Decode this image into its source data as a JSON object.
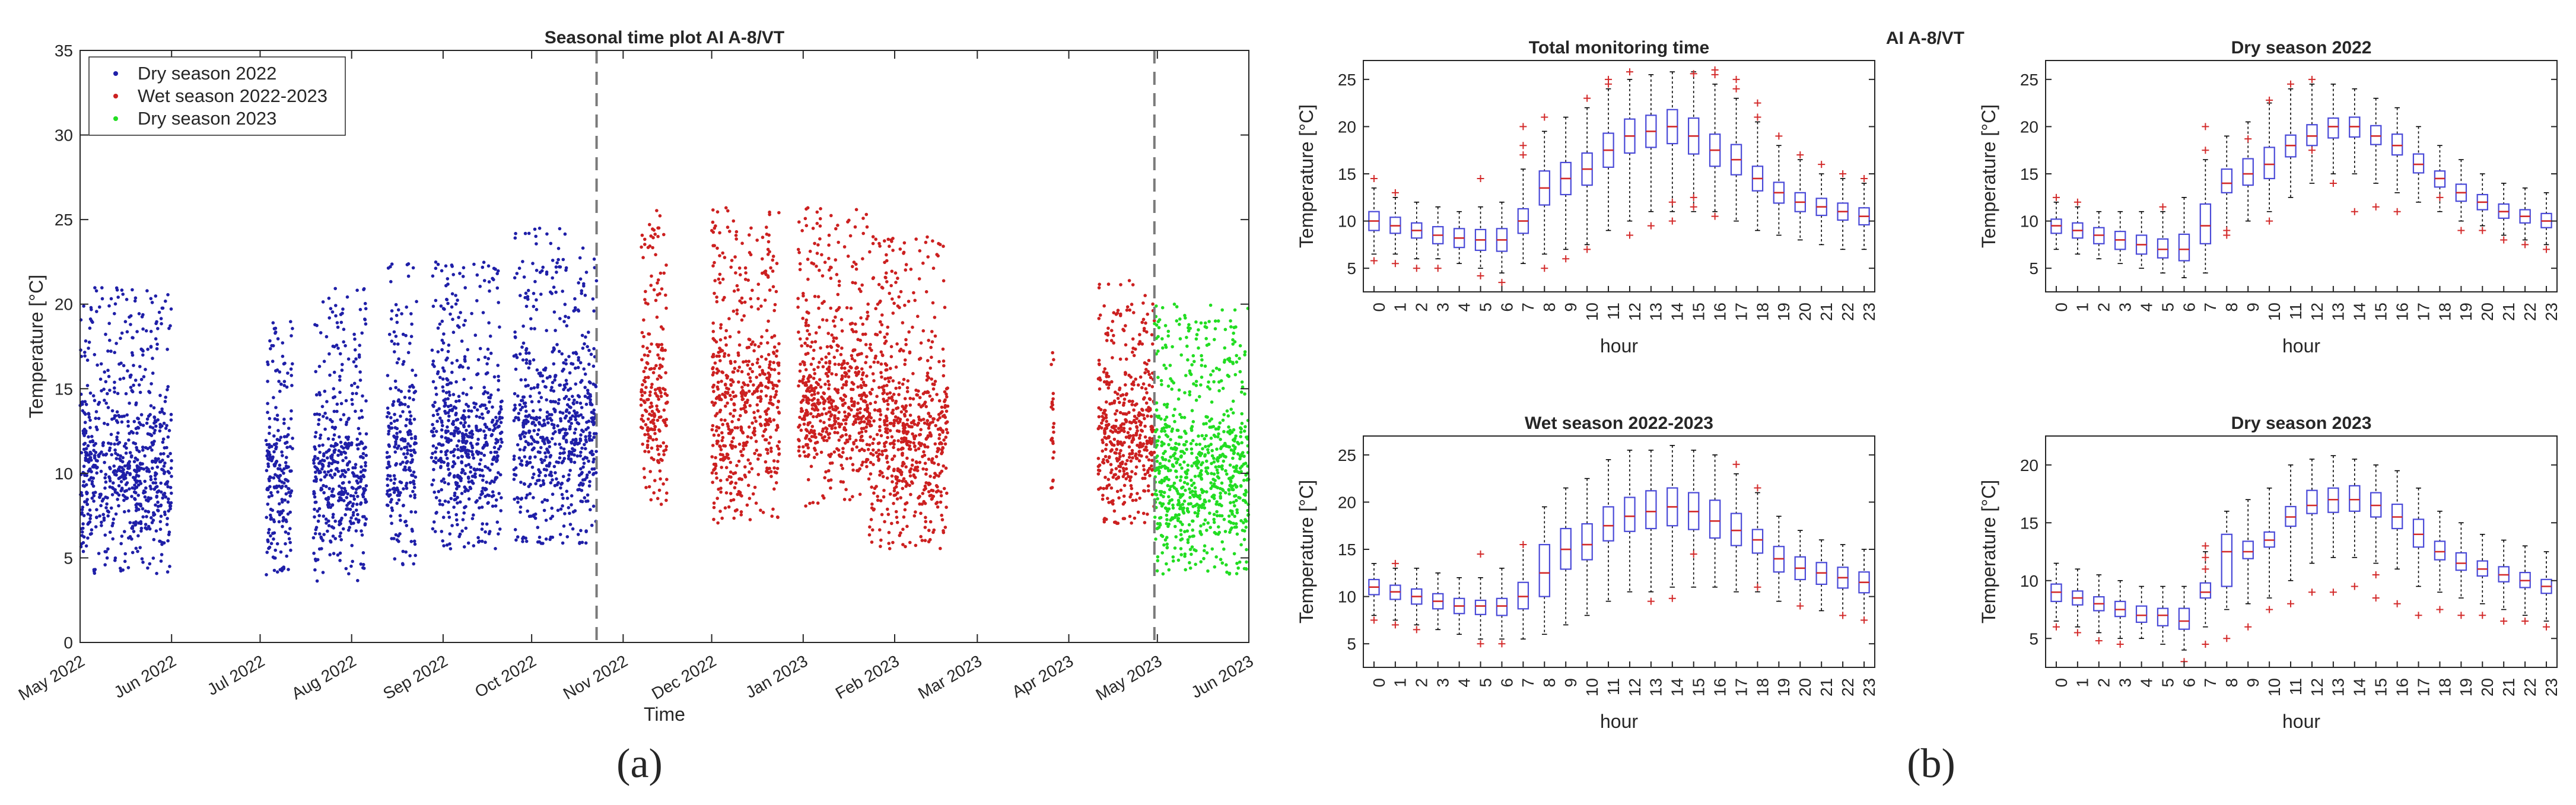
{
  "figure": {
    "suptitle_b": "AI A-8/VT",
    "panel_labels": {
      "a": "(a)",
      "b": "(b)"
    }
  },
  "chart_data": [
    {
      "type": "scatter",
      "id": "a",
      "title": "Seasonal time plot AI A-8/VT",
      "xlabel": "Time",
      "ylabel": "Temperature [°C]",
      "ylim": [
        0,
        35
      ],
      "yticks": [
        0,
        5,
        10,
        15,
        20,
        25,
        30,
        35
      ],
      "xlim_days": [
        0,
        396
      ],
      "xticks": [
        {
          "label": "May 2022",
          "day": 0
        },
        {
          "label": "Jun 2022",
          "day": 31
        },
        {
          "label": "Jul 2022",
          "day": 61
        },
        {
          "label": "Aug 2022",
          "day": 92
        },
        {
          "label": "Sep 2022",
          "day": 123
        },
        {
          "label": "Oct 2022",
          "day": 153
        },
        {
          "label": "Nov 2022",
          "day": 184
        },
        {
          "label": "Dec 2022",
          "day": 214
        },
        {
          "label": "Jan 2023",
          "day": 245
        },
        {
          "label": "Feb 2023",
          "day": 276
        },
        {
          "label": "Mar 2023",
          "day": 304
        },
        {
          "label": "Apr 2023",
          "day": 335
        },
        {
          "label": "May 2023",
          "day": 365
        },
        {
          "label": "Jun 2023",
          "day": 396
        }
      ],
      "season_dividers_days": [
        175,
        364
      ],
      "legend": {
        "placement": "top-left",
        "entries": [
          "Dry season 2022",
          "Wet season 2022-2023",
          "Dry season 2023"
        ]
      },
      "series": [
        {
          "name": "Dry season 2022",
          "color": "#1f1fa8",
          "clusters": [
            {
              "start": 0,
              "end": 31,
              "min": 4,
              "max": 21
            },
            {
              "start": 63,
              "end": 72,
              "min": 4,
              "max": 19
            },
            {
              "start": 79,
              "end": 97,
              "min": 3.5,
              "max": 21
            },
            {
              "start": 104,
              "end": 114,
              "min": 4.5,
              "max": 22.5
            },
            {
              "start": 119,
              "end": 143,
              "min": 5.5,
              "max": 22.5
            },
            {
              "start": 147,
              "end": 175,
              "min": 5.8,
              "max": 24.6
            }
          ]
        },
        {
          "name": "Wet season 2022-2023",
          "color": "#cc2020",
          "clusters": [
            {
              "start": 190,
              "end": 199,
              "min": 8,
              "max": 25.6
            },
            {
              "start": 214,
              "end": 237,
              "min": 7,
              "max": 25.7
            },
            {
              "start": 243,
              "end": 267,
              "min": 8,
              "max": 25.8
            },
            {
              "start": 267,
              "end": 294,
              "min": 5.5,
              "max": 24
            },
            {
              "start": 329,
              "end": 330,
              "min": 9,
              "max": 18.5
            },
            {
              "start": 345,
              "end": 364,
              "min": 7,
              "max": 21.5
            }
          ]
        },
        {
          "name": "Dry season 2023",
          "color": "#22dd22",
          "clusters": [
            {
              "start": 364,
              "end": 396,
              "min": 4,
              "max": 20
            }
          ]
        }
      ]
    },
    {
      "type": "box",
      "id": "b1",
      "title": "Total monitoring time",
      "xlabel": "hour",
      "ylabel": "Temperature [°C]",
      "ylim": [
        2.5,
        27
      ],
      "yticks": [
        5,
        10,
        15,
        20,
        25
      ],
      "categories": [
        "0",
        "1",
        "2",
        "3",
        "4",
        "5",
        "6",
        "7",
        "8",
        "9",
        "10",
        "11",
        "12",
        "13",
        "14",
        "15",
        "16",
        "17",
        "18",
        "19",
        "20",
        "21",
        "22",
        "23"
      ],
      "medians": [
        10,
        9.5,
        9,
        8.5,
        8.2,
        8,
        8,
        10,
        13.5,
        14.5,
        15.5,
        17.5,
        19,
        19.5,
        20,
        19,
        17.5,
        16.5,
        14.5,
        13,
        12,
        11.5,
        11,
        10.5
      ],
      "q1": [
        9,
        8.7,
        8.2,
        7.6,
        7.2,
        6.9,
        6.8,
        8.7,
        11.7,
        12.8,
        13.8,
        15.7,
        17.2,
        17.8,
        18.2,
        17.1,
        15.8,
        14.9,
        13.2,
        11.9,
        11,
        10.6,
        10.1,
        9.6
      ],
      "q3": [
        11,
        10.4,
        9.8,
        9.4,
        9.2,
        9.1,
        9.2,
        11.3,
        15.3,
        16.2,
        17.2,
        19.3,
        20.8,
        21.2,
        21.8,
        20.9,
        19.2,
        18.1,
        15.8,
        14.1,
        13,
        12.4,
        11.9,
        11.4
      ],
      "whisker_low": [
        6.5,
        6.5,
        6,
        6,
        5.5,
        5,
        4.5,
        5.5,
        6.5,
        7,
        7.5,
        9,
        10,
        11,
        11,
        11,
        11,
        10,
        9,
        8.5,
        8,
        7.5,
        7,
        7
      ],
      "whisker_high": [
        13.5,
        12.5,
        12,
        11.5,
        11,
        11.5,
        12,
        15.5,
        19.5,
        21,
        22,
        24,
        25,
        25.5,
        25.8,
        25.8,
        24.5,
        23,
        20.5,
        18,
        16.5,
        15,
        14.5,
        14
      ],
      "outliers": [
        [
          0,
          5.8
        ],
        [
          0,
          14.5
        ],
        [
          1,
          5.5
        ],
        [
          1,
          13
        ],
        [
          2,
          5
        ],
        [
          3,
          5
        ],
        [
          5,
          14.5
        ],
        [
          5,
          4.2
        ],
        [
          6,
          3.5
        ],
        [
          7,
          17
        ],
        [
          7,
          18
        ],
        [
          7,
          20
        ],
        [
          8,
          21
        ],
        [
          8,
          5
        ],
        [
          9,
          6
        ],
        [
          10,
          23
        ],
        [
          10,
          7
        ],
        [
          11,
          25
        ],
        [
          11,
          24.5
        ],
        [
          12,
          25.8
        ],
        [
          12,
          8.5
        ],
        [
          13,
          9.5
        ],
        [
          14,
          10
        ],
        [
          14,
          12
        ],
        [
          15,
          11.5
        ],
        [
          15,
          12.5
        ],
        [
          15,
          25.6
        ],
        [
          16,
          10.5
        ],
        [
          16,
          25.5
        ],
        [
          16,
          26
        ],
        [
          17,
          25
        ],
        [
          17,
          24
        ],
        [
          18,
          21
        ],
        [
          18,
          22.5
        ],
        [
          19,
          19
        ],
        [
          20,
          17
        ],
        [
          21,
          16
        ],
        [
          22,
          15
        ],
        [
          23,
          14.5
        ]
      ]
    },
    {
      "type": "box",
      "id": "b2",
      "title": "Dry season 2022",
      "xlabel": "hour",
      "ylabel": "Temperature [°C]",
      "ylim": [
        2.5,
        27
      ],
      "yticks": [
        5,
        10,
        15,
        20,
        25
      ],
      "categories": [
        "0",
        "1",
        "2",
        "3",
        "4",
        "5",
        "6",
        "7",
        "8",
        "9",
        "10",
        "11",
        "12",
        "13",
        "14",
        "15",
        "16",
        "17",
        "18",
        "19",
        "20",
        "21",
        "22",
        "23"
      ],
      "medians": [
        9.5,
        9,
        8.5,
        8,
        7.5,
        7,
        7,
        9.5,
        14,
        15,
        16,
        18,
        19,
        20,
        20,
        19,
        18,
        16,
        14.5,
        13,
        12,
        11,
        10.5,
        10
      ],
      "q1": [
        8.7,
        8.2,
        7.6,
        7,
        6.5,
        6.1,
        5.8,
        7.6,
        13,
        13.8,
        14.5,
        16.8,
        18,
        18.8,
        18.9,
        18.1,
        17,
        15.1,
        13.6,
        12.1,
        11.2,
        10.3,
        9.8,
        9.3
      ],
      "q3": [
        10.2,
        9.8,
        9.3,
        8.9,
        8.5,
        8.1,
        8.6,
        11.8,
        15.5,
        16.6,
        17.8,
        19.1,
        20.2,
        20.9,
        21,
        20.1,
        19.2,
        17.1,
        15.3,
        13.9,
        12.8,
        11.8,
        11.2,
        10.8
      ],
      "whisker_low": [
        7,
        6.5,
        6,
        5.5,
        5,
        4.5,
        4,
        4.5,
        9,
        10,
        11,
        12.5,
        14,
        15,
        15,
        14,
        13,
        12,
        11,
        10,
        9.5,
        8.5,
        8,
        7.5
      ],
      "whisker_high": [
        12,
        11.5,
        11,
        11,
        11,
        11,
        12.5,
        16.5,
        19,
        20.5,
        22.5,
        24,
        24.5,
        24.5,
        24,
        23,
        22,
        20,
        18,
        16.5,
        15,
        14,
        13.5,
        13
      ],
      "outliers": [
        [
          0,
          12.5
        ],
        [
          1,
          12
        ],
        [
          5,
          11.5
        ],
        [
          7,
          17.5
        ],
        [
          7,
          20
        ],
        [
          8,
          9
        ],
        [
          8,
          8.5
        ],
        [
          9,
          18.7
        ],
        [
          10,
          10
        ],
        [
          10,
          22.8
        ],
        [
          11,
          24.5
        ],
        [
          12,
          25
        ],
        [
          12,
          17.5
        ],
        [
          13,
          14
        ],
        [
          14,
          11
        ],
        [
          15,
          11.5
        ],
        [
          16,
          11
        ],
        [
          18,
          12.5
        ],
        [
          19,
          9
        ],
        [
          20,
          9
        ],
        [
          21,
          8
        ],
        [
          22,
          7.5
        ],
        [
          23,
          7
        ]
      ]
    },
    {
      "type": "box",
      "id": "b3",
      "title": "Wet season 2022-2023",
      "xlabel": "hour",
      "ylabel": "Temperature [°C]",
      "ylim": [
        2.5,
        27
      ],
      "yticks": [
        5,
        10,
        15,
        20,
        25
      ],
      "categories": [
        "0",
        "1",
        "2",
        "3",
        "4",
        "5",
        "6",
        "7",
        "8",
        "9",
        "10",
        "11",
        "12",
        "13",
        "14",
        "15",
        "16",
        "17",
        "18",
        "19",
        "20",
        "21",
        "22",
        "23"
      ],
      "medians": [
        11,
        10.5,
        10,
        9.5,
        9,
        9,
        9,
        10,
        12.5,
        15,
        15.5,
        17.5,
        18.5,
        19,
        19.5,
        19,
        18,
        17,
        16,
        14,
        13,
        12.5,
        12,
        11.5
      ],
      "q1": [
        10.2,
        9.7,
        9.2,
        8.7,
        8.2,
        8.1,
        8,
        8.7,
        10,
        12.9,
        13.9,
        15.9,
        16.9,
        17.2,
        17.5,
        17.1,
        16.2,
        15.4,
        14.6,
        12.6,
        11.8,
        11.3,
        10.9,
        10.4
      ],
      "q3": [
        11.8,
        11.2,
        10.8,
        10.3,
        9.8,
        9.6,
        9.8,
        11.5,
        15.5,
        17.2,
        17.7,
        19.5,
        20.5,
        21.2,
        21.5,
        21,
        20.2,
        18.8,
        17.1,
        15.3,
        14.2,
        13.6,
        13.1,
        12.6
      ],
      "whisker_low": [
        8,
        7.5,
        7,
        6.5,
        6,
        5.5,
        5.5,
        5.5,
        6,
        7,
        8,
        9.5,
        10.5,
        10.5,
        11,
        11,
        11,
        10.5,
        10.5,
        9.5,
        9,
        8.5,
        8,
        7.5
      ],
      "whisker_high": [
        13.5,
        13,
        13,
        12.5,
        12,
        12,
        13,
        15.5,
        19.5,
        21.5,
        22.5,
        24.5,
        25.5,
        25.5,
        26,
        25.5,
        25,
        23,
        21,
        18.5,
        17,
        16,
        15.5,
        15
      ],
      "outliers": [
        [
          0,
          7.5
        ],
        [
          1,
          7
        ],
        [
          1,
          13.5
        ],
        [
          2,
          6.5
        ],
        [
          5,
          14.5
        ],
        [
          5,
          5
        ],
        [
          6,
          5
        ],
        [
          7,
          15.5
        ],
        [
          13,
          9.5
        ],
        [
          14,
          9.8
        ],
        [
          15,
          14.5
        ],
        [
          17,
          24
        ],
        [
          18,
          21.5
        ],
        [
          18,
          11
        ],
        [
          20,
          9
        ],
        [
          22,
          8
        ],
        [
          23,
          7.5
        ]
      ]
    },
    {
      "type": "box",
      "id": "b4",
      "title": "Dry season 2023",
      "xlabel": "hour",
      "ylabel": "Temperature [°C]",
      "ylim": [
        2.5,
        22.5
      ],
      "yticks": [
        5,
        10,
        15,
        20
      ],
      "categories": [
        "0",
        "1",
        "2",
        "3",
        "4",
        "5",
        "6",
        "7",
        "8",
        "9",
        "10",
        "11",
        "12",
        "13",
        "14",
        "15",
        "16",
        "17",
        "18",
        "19",
        "20",
        "21",
        "22",
        "23"
      ],
      "medians": [
        9,
        8.5,
        8,
        7.5,
        7,
        7,
        6.5,
        9,
        12.5,
        12.5,
        13.5,
        15.5,
        16.5,
        17,
        17,
        16.5,
        15.5,
        14,
        12.5,
        11.5,
        11,
        10.5,
        10,
        9.5
      ],
      "q1": [
        8.2,
        7.9,
        7.4,
        6.9,
        6.4,
        6.1,
        5.8,
        8.5,
        9.5,
        11.9,
        12.9,
        14.7,
        15.8,
        15.9,
        16,
        15.5,
        14.5,
        12.9,
        11.8,
        10.9,
        10.4,
        9.9,
        9.4,
        8.9
      ],
      "q3": [
        9.7,
        9.1,
        8.6,
        8.2,
        7.8,
        7.6,
        7.6,
        9.8,
        14,
        13.4,
        14.2,
        16.4,
        17.8,
        18,
        18.2,
        17.6,
        16.6,
        15.3,
        13.4,
        12.4,
        11.7,
        11.2,
        10.7,
        10.1
      ],
      "whisker_low": [
        6.5,
        6,
        5.5,
        5,
        5,
        4.5,
        4,
        6,
        7.5,
        8,
        8.5,
        10,
        11.5,
        12,
        12,
        11.5,
        11,
        9.5,
        9,
        8.5,
        8,
        7.5,
        7,
        6.5
      ],
      "whisker_high": [
        11.5,
        11,
        10.5,
        10,
        9.5,
        9.5,
        9.5,
        12.5,
        16,
        17,
        18,
        20,
        20.5,
        20.8,
        20.5,
        20,
        19.5,
        18,
        16,
        15,
        14,
        13.5,
        13,
        12.5
      ],
      "outliers": [
        [
          0,
          6
        ],
        [
          1,
          5.5
        ],
        [
          2,
          4.8
        ],
        [
          3,
          4.5
        ],
        [
          6,
          3
        ],
        [
          7,
          11
        ],
        [
          7,
          12
        ],
        [
          7,
          13
        ],
        [
          7,
          4.5
        ],
        [
          8,
          5
        ],
        [
          9,
          6
        ],
        [
          10,
          7.5
        ],
        [
          11,
          8
        ],
        [
          12,
          9
        ],
        [
          13,
          9
        ],
        [
          14,
          9.5
        ],
        [
          15,
          10.5
        ],
        [
          15,
          8.5
        ],
        [
          16,
          8
        ],
        [
          17,
          7
        ],
        [
          18,
          7.5
        ],
        [
          19,
          7
        ],
        [
          20,
          7
        ],
        [
          21,
          6.5
        ],
        [
          22,
          6.5
        ],
        [
          23,
          6
        ]
      ]
    }
  ]
}
